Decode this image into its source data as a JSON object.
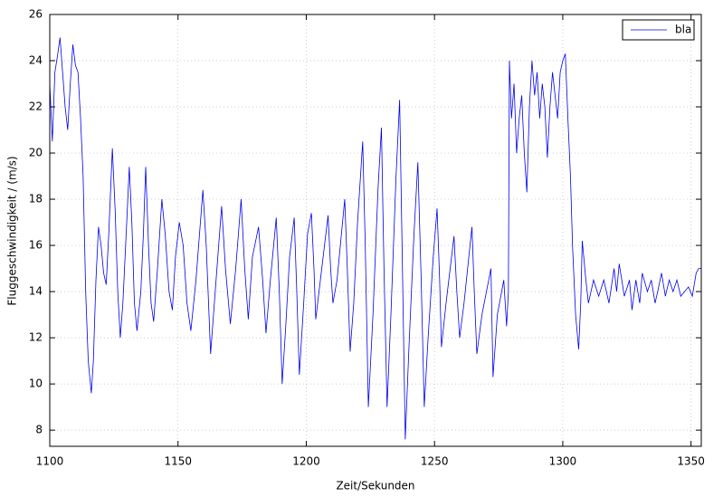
{
  "chart_data": {
    "type": "line",
    "xlabel": "Zeit/Sekunden",
    "ylabel": "Fluggeschwindigkeit / (m/s)",
    "x": [
      1100,
      1101,
      1102,
      1103,
      1104,
      1105,
      1106,
      1107,
      1108,
      1109,
      1110,
      1111,
      1112,
      1113,
      1114,
      1115,
      1116.2,
      1117,
      1118,
      1119,
      1120,
      1121,
      1122,
      1123,
      1124.4,
      1125.5,
      1126.5,
      1127.5,
      1128.5,
      1130,
      1131,
      1132,
      1133,
      1134,
      1135.5,
      1136.5,
      1137.4,
      1138.5,
      1139.5,
      1140.5,
      1142,
      1143.7,
      1145,
      1146.5,
      1147.8,
      1149,
      1150.5,
      1152,
      1153.5,
      1155,
      1157,
      1159.7,
      1161,
      1162.7,
      1164.5,
      1167,
      1168.5,
      1170.4,
      1172.5,
      1174.6,
      1176,
      1177.4,
      1179,
      1181.4,
      1183,
      1184.3,
      1186,
      1188.3,
      1189.5,
      1190.6,
      1192,
      1193.5,
      1195.3,
      1196.3,
      1197.3,
      1199,
      1200.5,
      1202,
      1203,
      1203.7,
      1205.5,
      1208.5,
      1209.5,
      1210.4,
      1212,
      1215,
      1216,
      1217.1,
      1218.5,
      1220,
      1222,
      1223,
      1224.2,
      1226,
      1228,
      1229.3,
      1230.3,
      1231.5,
      1233,
      1235,
      1236.4,
      1237.5,
      1238.6,
      1240,
      1242,
      1243.5,
      1244.8,
      1246,
      1247.5,
      1249.5,
      1251,
      1252,
      1252.7,
      1254.5,
      1257.6,
      1258.7,
      1259.8,
      1261.5,
      1264.6,
      1265.5,
      1266.5,
      1268.5,
      1272,
      1272.8,
      1274.5,
      1277,
      1278.1,
      1278.8,
      1279.2,
      1280,
      1281,
      1282,
      1283,
      1284,
      1285,
      1286,
      1287,
      1288,
      1289,
      1290,
      1291,
      1292,
      1293,
      1294,
      1295,
      1296,
      1297,
      1298,
      1299,
      1300,
      1301,
      1302,
      1303,
      1303.8,
      1305,
      1306.2,
      1307,
      1307.6,
      1309,
      1310,
      1312,
      1314,
      1316,
      1318,
      1320,
      1321,
      1322,
      1324,
      1326,
      1327,
      1328.5,
      1330,
      1331,
      1333,
      1334.5,
      1336,
      1337,
      1338.5,
      1340,
      1341.5,
      1343,
      1344.5,
      1346,
      1347.5,
      1349,
      1350.5,
      1352,
      1353,
      1354
    ],
    "series": [
      {
        "name": "bla",
        "color": "#0000ee",
        "values": [
          23.0,
          20.5,
          23.5,
          24.2,
          25.0,
          23.5,
          22.0,
          21.0,
          23.0,
          24.7,
          23.8,
          23.5,
          21.5,
          19.0,
          14.0,
          11.0,
          9.6,
          11.0,
          14.5,
          16.8,
          16.0,
          14.8,
          14.3,
          16.5,
          20.2,
          17.5,
          14.0,
          12.0,
          13.5,
          17.0,
          19.4,
          17.0,
          13.5,
          12.3,
          14.0,
          16.5,
          19.4,
          16.0,
          13.5,
          12.7,
          15.0,
          18.0,
          16.5,
          14.0,
          13.2,
          15.5,
          17.0,
          16.0,
          13.5,
          12.3,
          14.5,
          18.4,
          16.0,
          11.3,
          14.0,
          17.7,
          15.0,
          12.6,
          15.0,
          18.0,
          15.0,
          12.8,
          15.5,
          16.8,
          14.5,
          12.2,
          14.5,
          17.2,
          14.0,
          10.0,
          12.5,
          15.5,
          17.2,
          14.0,
          10.4,
          13.5,
          16.5,
          17.4,
          15.0,
          12.8,
          14.5,
          17.3,
          15.0,
          13.5,
          14.5,
          18.0,
          15.0,
          11.4,
          13.5,
          17.0,
          20.5,
          16.0,
          9.0,
          13.0,
          18.5,
          21.1,
          15.0,
          9.0,
          13.0,
          19.0,
          22.3,
          15.0,
          7.6,
          11.5,
          16.5,
          19.6,
          14.5,
          9.0,
          12.0,
          15.5,
          17.6,
          14.5,
          11.6,
          13.5,
          16.4,
          14.0,
          12.0,
          13.5,
          16.8,
          14.0,
          11.3,
          13.0,
          15.0,
          10.3,
          13.0,
          14.5,
          12.5,
          14.0,
          24.0,
          21.5,
          23.0,
          20.0,
          21.5,
          22.5,
          20.0,
          18.3,
          22.0,
          24.0,
          22.5,
          23.5,
          21.5,
          23.0,
          22.0,
          19.8,
          22.0,
          23.5,
          22.5,
          21.5,
          23.5,
          24.0,
          24.3,
          21.5,
          19.0,
          16.0,
          13.0,
          11.5,
          13.5,
          16.2,
          14.5,
          13.5,
          14.5,
          13.8,
          14.5,
          13.5,
          15.0,
          14.0,
          15.2,
          13.8,
          14.5,
          13.2,
          14.5,
          13.5,
          14.8,
          14.0,
          14.5,
          13.5,
          14.0,
          14.8,
          13.8,
          14.5,
          14.0,
          14.5,
          13.8,
          14.0,
          14.2,
          13.8,
          14.8,
          15.0,
          15.0
        ]
      }
    ],
    "xlim": [
      1100,
      1354
    ],
    "ylim": [
      7.3,
      26
    ],
    "xticks": [
      1100,
      1150,
      1200,
      1250,
      1300,
      1350
    ],
    "yticks": [
      8,
      10,
      12,
      14,
      16,
      18,
      20,
      22,
      24,
      26
    ],
    "grid": true,
    "legend": "upper right"
  }
}
